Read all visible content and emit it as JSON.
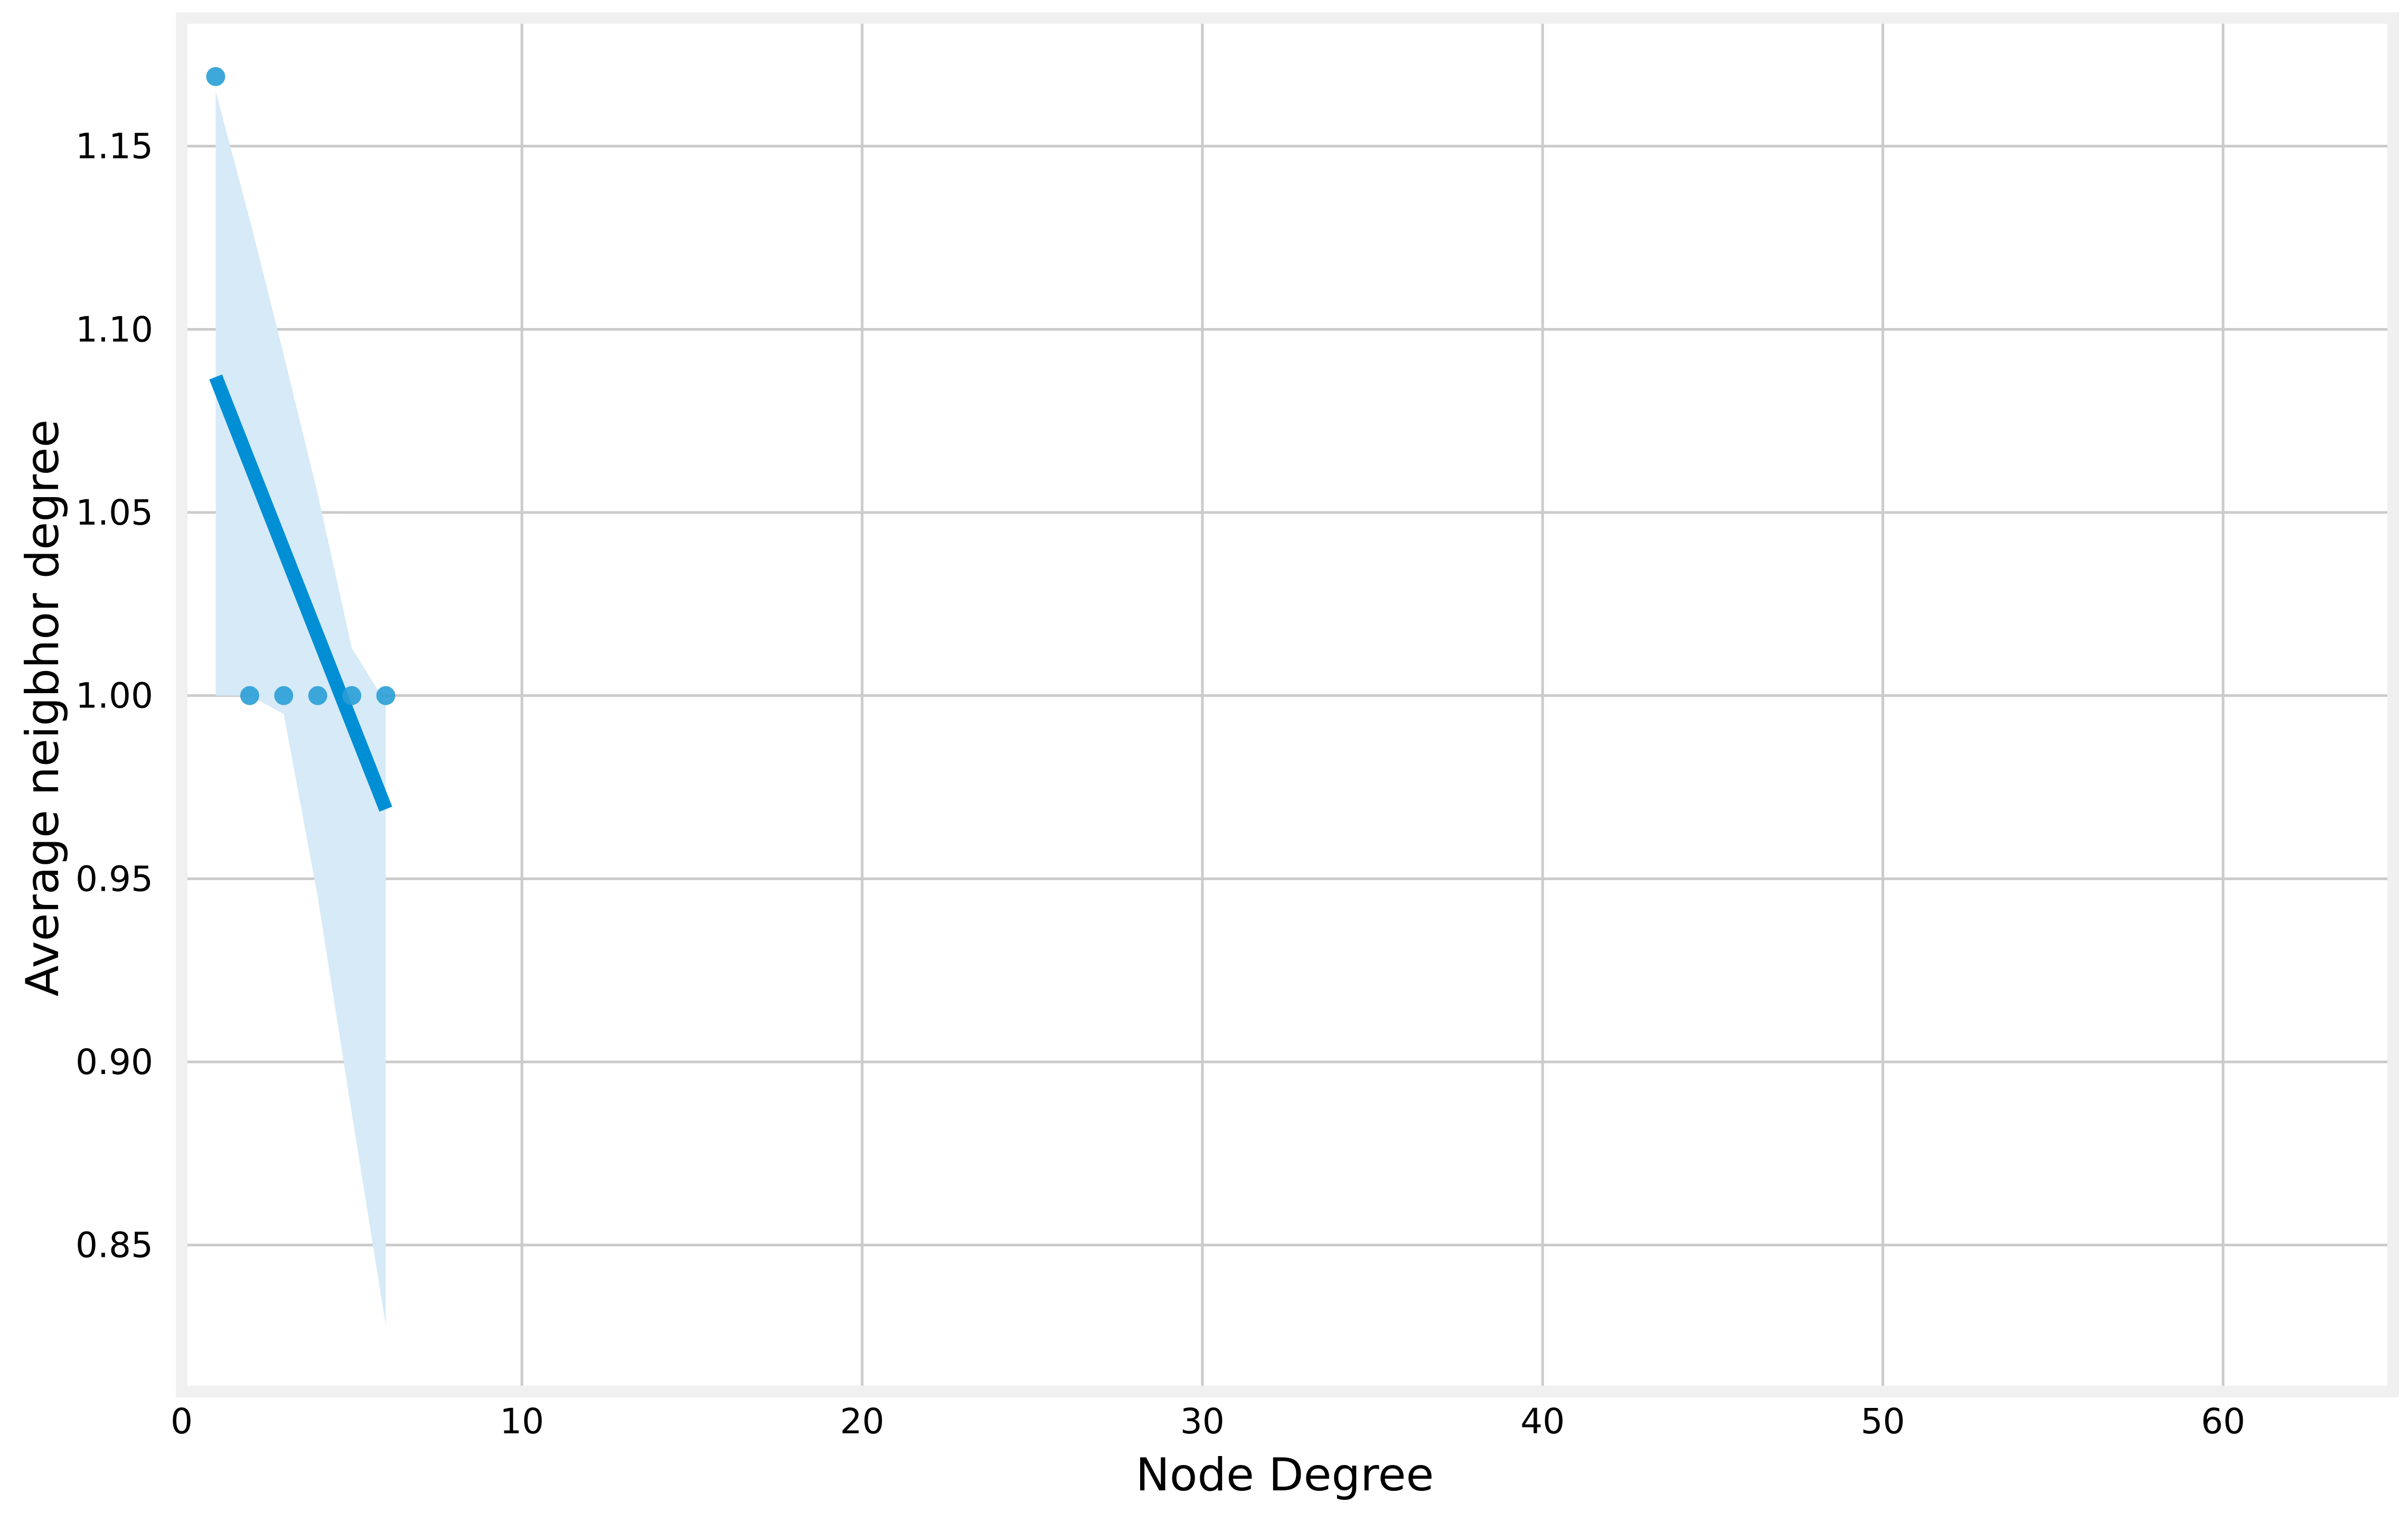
{
  "chart_data": {
    "type": "scatter",
    "title": "",
    "xlabel": "Node Degree",
    "ylabel": "Average neigbhor degree",
    "xlim": [
      0,
      65
    ],
    "ylim": [
      0.81,
      1.185
    ],
    "xticks": [
      0,
      10,
      20,
      30,
      40,
      50,
      60
    ],
    "yticks": [
      0.85,
      0.9,
      0.95,
      1.0,
      1.05,
      1.1,
      1.15
    ],
    "grid": true,
    "series": [
      {
        "kind": "points",
        "x": [
          1,
          2,
          3,
          4,
          5,
          6
        ],
        "y": [
          1.169,
          1.0,
          1.0,
          1.0,
          1.0,
          1.0
        ]
      },
      {
        "kind": "regression-line",
        "x": [
          1,
          6
        ],
        "y": [
          1.087,
          0.969
        ]
      },
      {
        "kind": "confidence-band",
        "x": [
          1,
          2,
          3,
          4,
          5,
          6
        ],
        "upper": [
          1.165,
          1.13,
          1.093,
          1.055,
          1.013,
          0.998
        ],
        "lower": [
          1.0,
          1.0,
          0.995,
          0.945,
          0.886,
          0.828
        ]
      }
    ],
    "colors": {
      "point": "#2a9fd6",
      "line": "#008fd5",
      "band": "#d6eaf7",
      "grid": "#cbcbcb",
      "frame": "#f0f0f0"
    }
  }
}
